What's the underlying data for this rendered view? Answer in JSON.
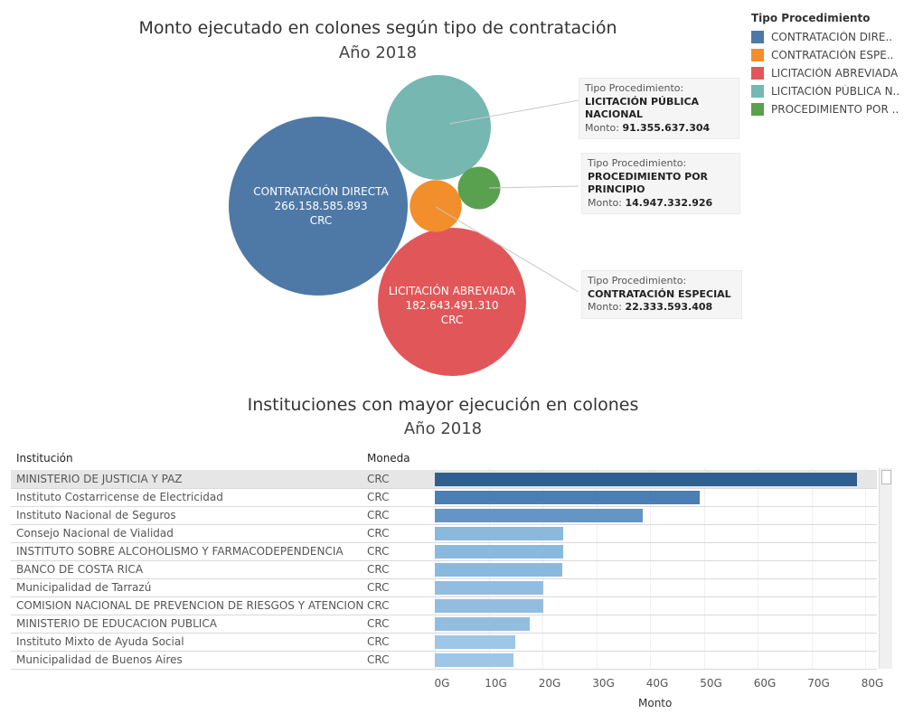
{
  "bubble_chart": {
    "title": "Monto ejecutado en colones según tipo de contratación",
    "subtitle": "Año 2018",
    "legend_title": "Tipo Procedimiento",
    "legend": [
      {
        "label": "CONTRATACIÓN DIRE..",
        "color": "#4e79a7"
      },
      {
        "label": "CONTRATACIÓN ESPE..",
        "color": "#f28e2b"
      },
      {
        "label": "LICITACIÓN ABREVIADA",
        "color": "#e15759"
      },
      {
        "label": "LICITACIÓN PÚBLICA N..",
        "color": "#76b7b2"
      },
      {
        "label": "PROCEDIMIENTO POR ..",
        "color": "#59a14f"
      }
    ],
    "labels": {
      "directa": {
        "name": "CONTRATACIÓN DIRECTA",
        "value": "266.158.585.893",
        "unit": "CRC"
      },
      "abreviada": {
        "name": "LICITACIÓN ABREVIADA",
        "value": "182.643.491.310",
        "unit": "CRC"
      }
    },
    "tooltips": [
      {
        "label": "Tipo Procedimiento:",
        "name": "LICITACIÓN PÚBLICA NACIONAL",
        "monto_label": "Monto:",
        "monto": "91.355.637.304"
      },
      {
        "label": "Tipo Procedimiento:",
        "name": "PROCEDIMIENTO POR PRINCIPIO",
        "monto_label": "Monto:",
        "monto": "14.947.332.926"
      },
      {
        "label": "Tipo Procedimiento:",
        "name": "CONTRATACIÓN ESPECIAL",
        "monto_label": "Monto:",
        "monto": "22.333.593.408"
      }
    ]
  },
  "chart_data": [
    {
      "type": "bubble",
      "title": "Monto ejecutado en colones según tipo de contratación",
      "subtitle": "Año 2018",
      "series": [
        {
          "name": "CONTRATACIÓN DIRECTA",
          "value": 266158585893,
          "color": "#4e79a7"
        },
        {
          "name": "LICITACIÓN ABREVIADA",
          "value": 182643491310,
          "color": "#e15759"
        },
        {
          "name": "LICITACIÓN PÚBLICA NACIONAL",
          "value": 91355637304,
          "color": "#76b7b2"
        },
        {
          "name": "CONTRATACIÓN ESPECIAL",
          "value": 22333593408,
          "color": "#f28e2b"
        },
        {
          "name": "PROCEDIMIENTO POR PRINCIPIO",
          "value": 14947332926,
          "color": "#59a14f"
        }
      ]
    },
    {
      "type": "bar",
      "title": "Instituciones con mayor ejecución en colones",
      "subtitle": "Año 2018",
      "xlabel": "Monto",
      "xlim": [
        0,
        80
      ],
      "ticks": [
        "0G",
        "10G",
        "20G",
        "30G",
        "40G",
        "50G",
        "60G",
        "70G",
        "80G"
      ],
      "columns": [
        "Institución",
        "Moneda"
      ],
      "rows": [
        {
          "institucion": "MINISTERIO DE JUSTICIA Y PAZ",
          "moneda": "CRC",
          "value": 78.5
        },
        {
          "institucion": "Instituto Costarricense de Electricidad",
          "moneda": "CRC",
          "value": 49.3
        },
        {
          "institucion": "Instituto Nacional de Seguros",
          "moneda": "CRC",
          "value": 38.6
        },
        {
          "institucion": "Consejo Nacional de Vialidad",
          "moneda": "CRC",
          "value": 23.9
        },
        {
          "institucion": "INSTITUTO SOBRE ALCOHOLISMO Y FARMACODEPENDENCIA",
          "moneda": "CRC",
          "value": 23.8
        },
        {
          "institucion": "BANCO DE COSTA RICA",
          "moneda": "CRC",
          "value": 23.7
        },
        {
          "institucion": "Municipalidad de Tarrazú",
          "moneda": "CRC",
          "value": 20.2
        },
        {
          "institucion": "COMISION NACIONAL DE PREVENCION DE RIESGOS Y ATENCION D..",
          "moneda": "CRC",
          "value": 20.1
        },
        {
          "institucion": "MINISTERIO DE EDUCACION PUBLICA",
          "moneda": "CRC",
          "value": 17.7
        },
        {
          "institucion": "Instituto Mixto de Ayuda Social",
          "moneda": "CRC",
          "value": 14.9
        },
        {
          "institucion": "Municipalidad de Buenos Aires",
          "moneda": "CRC",
          "value": 14.6
        }
      ]
    }
  ]
}
